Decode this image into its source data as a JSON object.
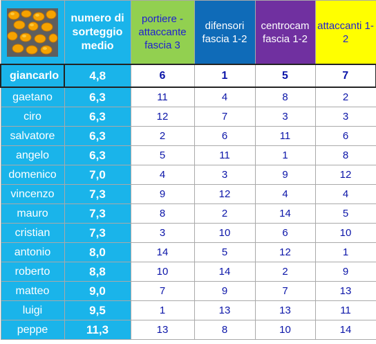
{
  "header": {
    "avg_label": "numero di sorteggio medio",
    "columns": [
      "portiere - attaccante fascia 3",
      "difensori fascia 1-2",
      "centrocam fascia 1-2",
      "attaccanti 1-2"
    ],
    "column_colors": [
      "#92d050",
      "#0f6bb8",
      "#7030a0",
      "#ffff00"
    ]
  },
  "rows": [
    {
      "name": "giancarlo",
      "avg": "4,8",
      "v": [
        "6",
        "1",
        "5",
        "7"
      ]
    },
    {
      "name": "gaetano",
      "avg": "6,3",
      "v": [
        "11",
        "4",
        "8",
        "2"
      ]
    },
    {
      "name": "ciro",
      "avg": "6,3",
      "v": [
        "12",
        "7",
        "3",
        "3"
      ]
    },
    {
      "name": "salvatore",
      "avg": "6,3",
      "v": [
        "2",
        "6",
        "11",
        "6"
      ]
    },
    {
      "name": "angelo",
      "avg": "6,3",
      "v": [
        "5",
        "11",
        "1",
        "8"
      ]
    },
    {
      "name": "domenico",
      "avg": "7,0",
      "v": [
        "4",
        "3",
        "9",
        "12"
      ]
    },
    {
      "name": "vincenzo",
      "avg": "7,3",
      "v": [
        "9",
        "12",
        "4",
        "4"
      ]
    },
    {
      "name": "mauro",
      "avg": "7,3",
      "v": [
        "8",
        "2",
        "14",
        "5"
      ]
    },
    {
      "name": "cristian",
      "avg": "7,3",
      "v": [
        "3",
        "10",
        "6",
        "10"
      ]
    },
    {
      "name": "antonio",
      "avg": "8,0",
      "v": [
        "14",
        "5",
        "12",
        "1"
      ]
    },
    {
      "name": "roberto",
      "avg": "8,8",
      "v": [
        "10",
        "14",
        "2",
        "9"
      ]
    },
    {
      "name": "matteo",
      "avg": "9,0",
      "v": [
        "7",
        "9",
        "7",
        "13"
      ]
    },
    {
      "name": "luigi",
      "avg": "9,5",
      "v": [
        "1",
        "13",
        "13",
        "11"
      ]
    },
    {
      "name": "peppe",
      "avg": "11,3",
      "v": [
        "13",
        "8",
        "10",
        "14"
      ]
    }
  ]
}
